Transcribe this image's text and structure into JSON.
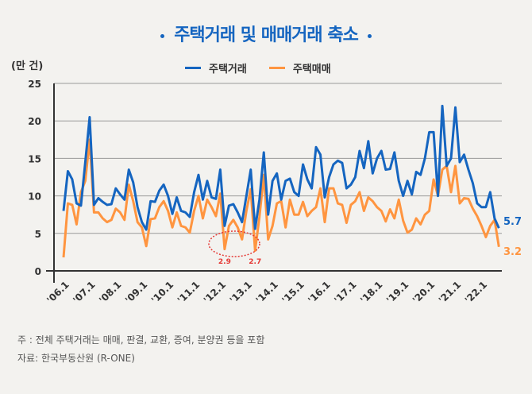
{
  "title": "주택거래 및 매매거래 축소",
  "unit": "(만 건)",
  "colors": {
    "title": "#1565c0",
    "series1": "#1565c0",
    "series2": "#ff9540",
    "annotation": "#e53935"
  },
  "chart_data": {
    "type": "line",
    "title": "주택거래 및 매매거래 축소",
    "ylabel": "(만 건)",
    "ylim": [
      0,
      25
    ],
    "yticks": [
      "0",
      "5",
      "10",
      "15",
      "20",
      "25"
    ],
    "xticks": [
      "'06.1",
      "'07.1",
      "'08.1",
      "'09.1",
      "'10.1",
      "'11.1",
      "'12.1",
      "'13.1",
      "'14.1",
      "'15.1",
      "'16.1",
      "'17.1",
      "'18.1",
      "'19.1",
      "'20.1",
      "'21.1",
      "'22.1"
    ],
    "grid": true,
    "legend": "top-center",
    "x": [
      "2006-01",
      "2006-03",
      "2006-05",
      "2006-07",
      "2006-09",
      "2006-11",
      "2007-01",
      "2007-03",
      "2007-05",
      "2007-07",
      "2007-09",
      "2007-11",
      "2008-01",
      "2008-03",
      "2008-05",
      "2008-07",
      "2008-09",
      "2008-11",
      "2009-01",
      "2009-03",
      "2009-05",
      "2009-07",
      "2009-09",
      "2009-11",
      "2010-01",
      "2010-03",
      "2010-05",
      "2010-07",
      "2010-09",
      "2010-11",
      "2011-01",
      "2011-03",
      "2011-05",
      "2011-07",
      "2011-09",
      "2011-11",
      "2012-01",
      "2012-03",
      "2012-05",
      "2012-07",
      "2012-09",
      "2012-11",
      "2013-01",
      "2013-03",
      "2013-05",
      "2013-07",
      "2013-09",
      "2013-11",
      "2014-01",
      "2014-03",
      "2014-05",
      "2014-07",
      "2014-09",
      "2014-11",
      "2015-01",
      "2015-03",
      "2015-05",
      "2015-07",
      "2015-09",
      "2015-11",
      "2016-01",
      "2016-03",
      "2016-05",
      "2016-07",
      "2016-09",
      "2016-11",
      "2017-01",
      "2017-03",
      "2017-05",
      "2017-07",
      "2017-09",
      "2017-11",
      "2018-01",
      "2018-03",
      "2018-05",
      "2018-07",
      "2018-09",
      "2018-11",
      "2019-01",
      "2019-03",
      "2019-05",
      "2019-07",
      "2019-09",
      "2019-11",
      "2020-01",
      "2020-03",
      "2020-05",
      "2020-07",
      "2020-09",
      "2020-11",
      "2021-01",
      "2021-03",
      "2021-05",
      "2021-07",
      "2021-09",
      "2021-11",
      "2022-01",
      "2022-03",
      "2022-05",
      "2022-07",
      "2022-09"
    ],
    "series": [
      {
        "name": "주택거래",
        "end_label": "5.7",
        "values": [
          8,
          13.3,
          12.2,
          9,
          8.7,
          14.5,
          20.5,
          8.8,
          9.7,
          9.2,
          8.8,
          8.9,
          11,
          10.2,
          9.5,
          13.5,
          11.8,
          8.5,
          6.5,
          5.5,
          9.3,
          9.2,
          10.7,
          11.5,
          10,
          7.6,
          9.8,
          8,
          7.8,
          7.2,
          10.5,
          12.8,
          9.5,
          12,
          9.8,
          9.6,
          13.5,
          6,
          8.7,
          8.9,
          7.8,
          6.5,
          10,
          13.5,
          5.6,
          9.5,
          15.8,
          7.5,
          12,
          13,
          9.5,
          12,
          12.3,
          10.5,
          10,
          14.2,
          12.2,
          11,
          16.5,
          15.5,
          9.8,
          12.5,
          14.2,
          14.7,
          14.4,
          11,
          11.5,
          12.5,
          16,
          13.7,
          17.3,
          13,
          15,
          16,
          13.5,
          13.6,
          15.8,
          12,
          10,
          12,
          10.2,
          13.2,
          12.8,
          15,
          18.5,
          18.5,
          10,
          22,
          14,
          15,
          21.8,
          14.5,
          15.5,
          13.5,
          11.7,
          9,
          8.5,
          8.5,
          10.5,
          7,
          5.7
        ]
      },
      {
        "name": "주택매매",
        "end_label": "3.2",
        "values": [
          1.8,
          9,
          8.8,
          6.2,
          10.5,
          12,
          17.5,
          7.8,
          7.8,
          7,
          6.5,
          6.8,
          8.3,
          7.8,
          6.8,
          11.5,
          9.3,
          6.5,
          5.8,
          3.3,
          6.9,
          7,
          8.5,
          9.3,
          8,
          5.8,
          7.8,
          6,
          5.8,
          5.1,
          8,
          10,
          7,
          9.5,
          8.5,
          7.3,
          10.3,
          2.9,
          6,
          6.8,
          5.8,
          4.2,
          8,
          10.9,
          2.7,
          7.2,
          12.8,
          4.2,
          6,
          9,
          9.3,
          5.8,
          9.5,
          7.5,
          7.5,
          9.2,
          7.3,
          8,
          8.5,
          11,
          6.5,
          11,
          11,
          9,
          8.8,
          6.4,
          8.8,
          9.3,
          10.5,
          8,
          9.8,
          9.3,
          8.5,
          8,
          6.6,
          8.2,
          7,
          9.5,
          6.7,
          5.1,
          5.5,
          7,
          6.2,
          7.5,
          8,
          12.2,
          10,
          13.5,
          14,
          10.5,
          14,
          9,
          9.7,
          9.6,
          8.3,
          7.3,
          6,
          4.5,
          6,
          6.8,
          3.2
        ]
      }
    ],
    "annotations": [
      {
        "x": "2012-03",
        "label": "2.9"
      },
      {
        "x": "2013-05",
        "label": "2.7"
      }
    ]
  },
  "notes": {
    "note": "주 : 전체 주택거래는 매매, 판결, 교환, 증여, 분양권 등을 포함",
    "source": "자료: 한국부동산원 (R-ONE)"
  }
}
